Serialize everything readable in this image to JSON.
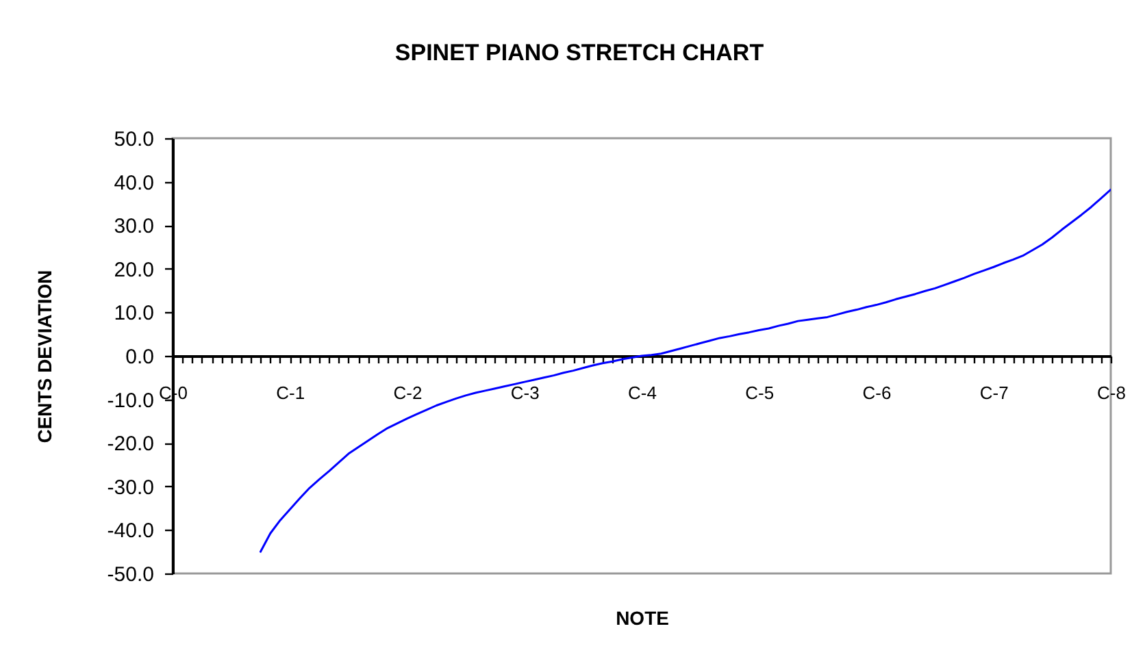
{
  "chart_data": {
    "type": "line",
    "title": "SPINET PIANO STRETCH CHART",
    "xlabel": "NOTE",
    "ylabel": "CENTS DEVIATION",
    "categories": [
      "C-0",
      null,
      null,
      null,
      null,
      null,
      null,
      null,
      null,
      null,
      null,
      null,
      "C-1",
      null,
      null,
      null,
      null,
      null,
      null,
      null,
      null,
      null,
      null,
      null,
      "C-2",
      null,
      null,
      null,
      null,
      null,
      null,
      null,
      null,
      null,
      null,
      null,
      "C-3",
      null,
      null,
      null,
      null,
      null,
      null,
      null,
      null,
      null,
      null,
      null,
      "C-4",
      null,
      null,
      null,
      null,
      null,
      null,
      null,
      null,
      null,
      null,
      null,
      "C-5",
      null,
      null,
      null,
      null,
      null,
      null,
      null,
      null,
      null,
      null,
      null,
      "C-6",
      null,
      null,
      null,
      null,
      null,
      null,
      null,
      null,
      null,
      null,
      null,
      "C-7",
      null,
      null,
      null,
      null,
      null,
      null,
      null,
      null,
      null,
      null,
      null,
      "C-8"
    ],
    "series": [
      {
        "color": "#0000ff",
        "values": [
          null,
          null,
          null,
          null,
          null,
          null,
          null,
          null,
          null,
          -45.0,
          -40.8,
          -37.8,
          -35.3,
          -32.8,
          -30.4,
          -28.4,
          -26.5,
          -24.5,
          -22.5,
          -21.0,
          -19.5,
          -18.0,
          -16.6,
          -15.5,
          -14.4,
          -13.4,
          -12.4,
          -11.4,
          -10.6,
          -9.8,
          -9.1,
          -8.5,
          -8.0,
          -7.5,
          -7.0,
          -6.5,
          -6.0,
          -5.5,
          -5.0,
          -4.5,
          -3.9,
          -3.4,
          -2.8,
          -2.2,
          -1.7,
          -1.3,
          -0.8,
          -0.4,
          0.0,
          0.2,
          0.5,
          1.1,
          1.7,
          2.3,
          2.9,
          3.5,
          4.1,
          4.5,
          5.0,
          5.4,
          5.9,
          6.3,
          6.9,
          7.4,
          8.0,
          8.3,
          8.6,
          8.9,
          9.5,
          10.1,
          10.6,
          11.2,
          11.7,
          12.3,
          13.0,
          13.6,
          14.2,
          14.9,
          15.5,
          16.3,
          17.1,
          17.9,
          18.8,
          19.6,
          20.4,
          21.3,
          22.1,
          23.0,
          24.3,
          25.6,
          27.2,
          29.0,
          30.7,
          32.4,
          34.2,
          36.2,
          38.2
        ]
      }
    ],
    "ylim": [
      -50,
      50
    ],
    "yticks": [
      {
        "value": -50,
        "label": "-50.0"
      },
      {
        "value": -40,
        "label": "-40.0"
      },
      {
        "value": -30,
        "label": "-30.0"
      },
      {
        "value": -20,
        "label": "-20.0"
      },
      {
        "value": -10,
        "label": "-10.0"
      },
      {
        "value": 0,
        "label": "0.0"
      },
      {
        "value": 10,
        "label": "10.0"
      },
      {
        "value": 20,
        "label": "20.0"
      },
      {
        "value": 30,
        "label": "30.0"
      },
      {
        "value": 40,
        "label": "40.0"
      },
      {
        "value": 50,
        "label": "50.0"
      }
    ]
  }
}
